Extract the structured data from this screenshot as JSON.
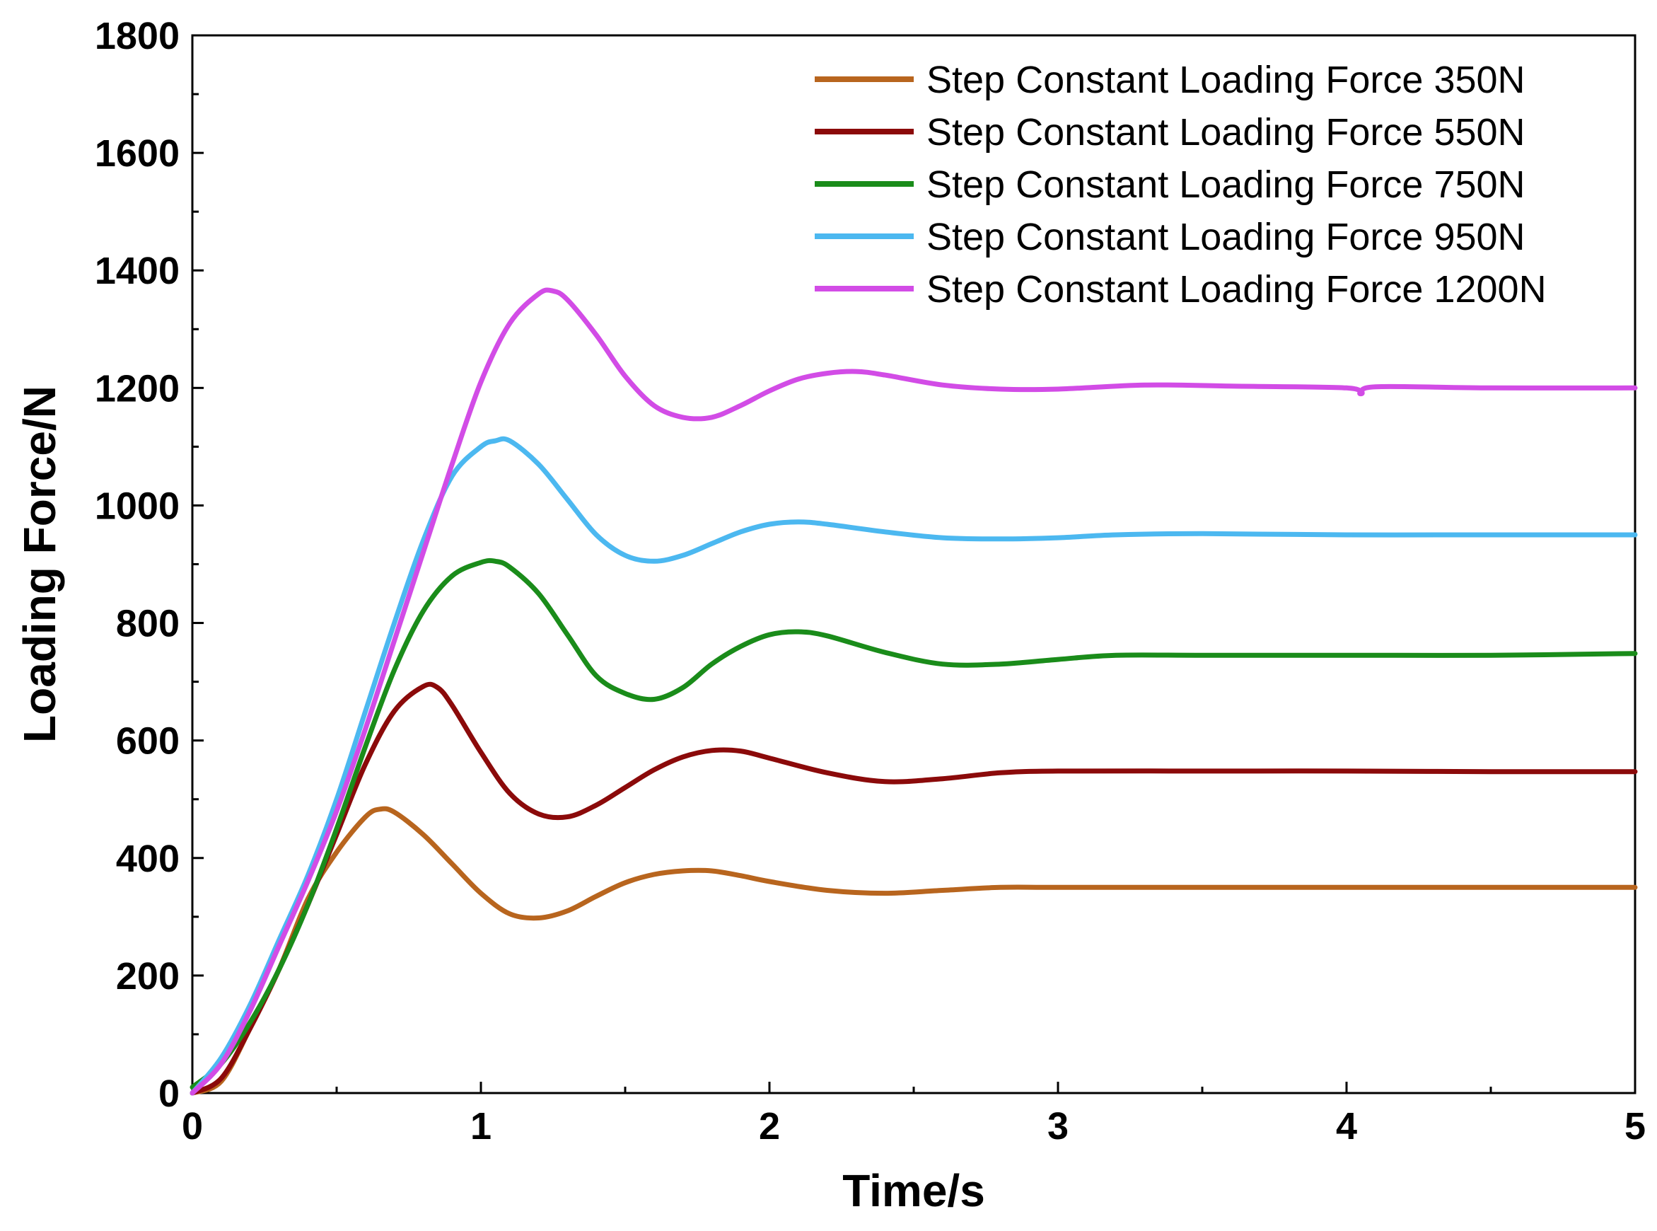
{
  "chart_data": {
    "type": "line",
    "title": "",
    "xlabel": "Time/s",
    "ylabel": "Loading Force/N",
    "xlim": [
      0,
      5
    ],
    "ylim": [
      0,
      1800
    ],
    "xticks": [
      0,
      1,
      2,
      3,
      4,
      5
    ],
    "yticks": [
      0,
      200,
      400,
      600,
      800,
      1000,
      1200,
      1400,
      1600,
      1800
    ],
    "grid": false,
    "legend_position": "top-right",
    "series": [
      {
        "name": "Step Constant Loading Force 350N",
        "color": "#b8651e",
        "x": [
          0,
          0.1,
          0.2,
          0.3,
          0.4,
          0.5,
          0.6,
          0.65,
          0.7,
          0.8,
          0.9,
          1.0,
          1.1,
          1.2,
          1.3,
          1.4,
          1.5,
          1.6,
          1.7,
          1.8,
          1.9,
          2.0,
          2.2,
          2.4,
          2.6,
          2.8,
          3.0,
          3.5,
          4.0,
          4.5,
          5.0
        ],
        "y": [
          0,
          20,
          110,
          210,
          330,
          410,
          470,
          483,
          478,
          440,
          390,
          340,
          305,
          298,
          310,
          335,
          358,
          372,
          378,
          378,
          370,
          360,
          345,
          340,
          345,
          350,
          350,
          350,
          350,
          350,
          350
        ]
      },
      {
        "name": "Step Constant Loading Force 550N",
        "color": "#8b0a0a",
        "x": [
          0,
          0.1,
          0.2,
          0.3,
          0.4,
          0.5,
          0.6,
          0.7,
          0.8,
          0.85,
          0.9,
          1.0,
          1.1,
          1.2,
          1.3,
          1.4,
          1.5,
          1.6,
          1.7,
          1.8,
          1.9,
          2.0,
          2.2,
          2.4,
          2.6,
          2.8,
          3.0,
          3.5,
          4.0,
          4.5,
          5.0
        ],
        "y": [
          0,
          25,
          110,
          210,
          320,
          440,
          560,
          650,
          692,
          690,
          660,
          580,
          510,
          475,
          470,
          490,
          520,
          550,
          572,
          583,
          582,
          570,
          545,
          530,
          535,
          545,
          548,
          548,
          548,
          547,
          547
        ]
      },
      {
        "name": "Step Constant Loading Force 750N",
        "color": "#1a8c1a",
        "x": [
          0,
          0.1,
          0.2,
          0.3,
          0.4,
          0.5,
          0.6,
          0.7,
          0.8,
          0.9,
          1.0,
          1.05,
          1.1,
          1.2,
          1.3,
          1.4,
          1.5,
          1.6,
          1.7,
          1.8,
          1.9,
          2.0,
          2.1,
          2.2,
          2.4,
          2.6,
          2.8,
          3.0,
          3.2,
          3.5,
          4.0,
          4.5,
          5.0
        ],
        "y": [
          10,
          50,
          120,
          210,
          320,
          450,
          590,
          720,
          820,
          880,
          903,
          905,
          895,
          850,
          780,
          710,
          680,
          670,
          690,
          730,
          760,
          780,
          785,
          778,
          750,
          730,
          730,
          738,
          745,
          745,
          745,
          745,
          748
        ]
      },
      {
        "name": "Step Constant Loading Force 950N",
        "color": "#4cb8f0",
        "x": [
          0,
          0.1,
          0.2,
          0.3,
          0.4,
          0.5,
          0.6,
          0.7,
          0.8,
          0.9,
          1.0,
          1.05,
          1.1,
          1.2,
          1.3,
          1.4,
          1.5,
          1.6,
          1.7,
          1.8,
          1.9,
          2.0,
          2.1,
          2.2,
          2.4,
          2.6,
          2.8,
          3.0,
          3.2,
          3.5,
          4.0,
          4.5,
          5.0
        ],
        "y": [
          0,
          60,
          150,
          260,
          370,
          500,
          650,
          800,
          940,
          1050,
          1100,
          1110,
          1110,
          1070,
          1010,
          950,
          915,
          905,
          915,
          935,
          955,
          968,
          972,
          968,
          955,
          945,
          943,
          945,
          950,
          952,
          950,
          950,
          950
        ]
      },
      {
        "name": "Step Constant Loading Force 1200N",
        "color": "#d24ce6",
        "x": [
          0,
          0.1,
          0.2,
          0.3,
          0.4,
          0.5,
          0.6,
          0.7,
          0.8,
          0.9,
          1.0,
          1.1,
          1.2,
          1.25,
          1.3,
          1.4,
          1.5,
          1.6,
          1.7,
          1.8,
          1.9,
          2.0,
          2.1,
          2.2,
          2.3,
          2.4,
          2.6,
          2.8,
          3.0,
          3.3,
          3.6,
          4.0,
          4.05,
          4.1,
          4.5,
          5.0
        ],
        "y": [
          0,
          50,
          140,
          250,
          360,
          480,
          620,
          770,
          920,
          1070,
          1210,
          1310,
          1360,
          1365,
          1350,
          1290,
          1220,
          1170,
          1150,
          1150,
          1170,
          1195,
          1215,
          1225,
          1228,
          1222,
          1205,
          1198,
          1198,
          1205,
          1203,
          1200,
          1190,
          1202,
          1200,
          1200
        ]
      }
    ]
  }
}
